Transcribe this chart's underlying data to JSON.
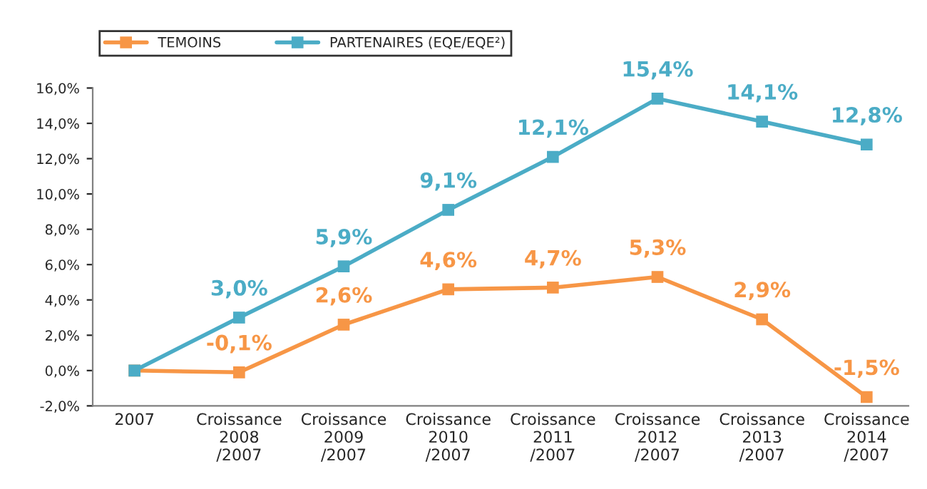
{
  "chart_data": {
    "type": "line",
    "categories": [
      "2007",
      "Croissance\n2008\n/2007",
      "Croissance\n2009\n/2007",
      "Croissance\n2010\n/2007",
      "Croissance\n2011\n/2007",
      "Croissance\n2012\n/2007",
      "Croissance\n2013\n/2007",
      "Croissance\n2014\n/2007"
    ],
    "series": [
      {
        "name": "TEMOINS",
        "color": "#f79646",
        "values": [
          0,
          -0.1,
          2.6,
          4.6,
          4.7,
          5.3,
          2.9,
          -1.5
        ],
        "value_labels": [
          null,
          "-0,1%",
          "2,6%",
          "4,6%",
          "4,7%",
          "5,3%",
          "2,9%",
          "-1,5%"
        ]
      },
      {
        "name": "PARTENAIRES (EQE/EQE²)",
        "color": "#4bacc6",
        "values": [
          0,
          3.0,
          5.9,
          9.1,
          12.1,
          15.4,
          14.1,
          12.8
        ],
        "value_labels": [
          null,
          "3,0%",
          "5,9%",
          "9,1%",
          "12,1%",
          "15,4%",
          "14,1%",
          "12,8%"
        ]
      }
    ],
    "ylim": [
      -2,
      16
    ],
    "yticks": [
      {
        "value": -2,
        "label": "-2,0%"
      },
      {
        "value": 0,
        "label": "0,0%"
      },
      {
        "value": 2,
        "label": "2,0%"
      },
      {
        "value": 4,
        "label": "4,0%"
      },
      {
        "value": 6,
        "label": "6,0%"
      },
      {
        "value": 8,
        "label": "8,0%"
      },
      {
        "value": 10,
        "label": "10,0%"
      },
      {
        "value": 12,
        "label": "12,0%"
      },
      {
        "value": 14,
        "label": "14,0%"
      },
      {
        "value": 16,
        "label": "16,0%"
      }
    ],
    "marker": "square",
    "line_style": "solid",
    "grid": false,
    "legend": "top"
  }
}
